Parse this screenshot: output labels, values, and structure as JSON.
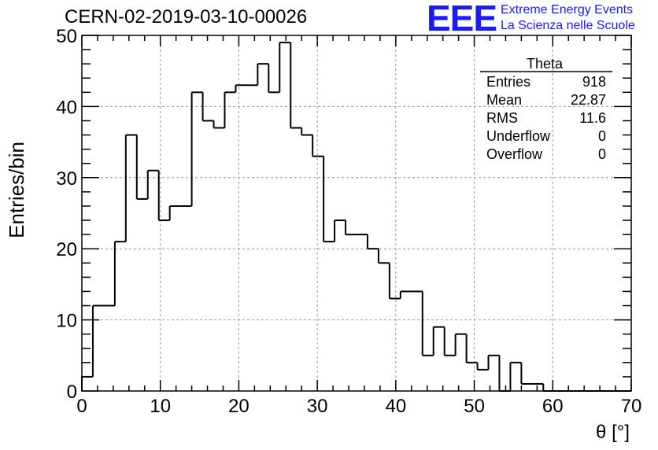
{
  "header": {
    "run_title": "CERN-02-2019-03-10-00026",
    "logo_text": "EEE",
    "logo_line1": "Extreme Energy Events",
    "logo_line2": "La Scienza nelle Scuole",
    "logo_color": "#1a1aff"
  },
  "stats_box": {
    "title": "Theta",
    "rows": [
      {
        "label": "Entries",
        "value": "918"
      },
      {
        "label": "Mean",
        "value": "22.87"
      },
      {
        "label": "RMS",
        "value": "11.6"
      },
      {
        "label": "Underflow",
        "value": "0"
      },
      {
        "label": "Overflow",
        "value": "0"
      }
    ]
  },
  "chart_data": {
    "type": "bar",
    "histogram": true,
    "title": "CERN-02-2019-03-10-00026",
    "xlabel": "θ [°]",
    "ylabel": "Entries/bin",
    "xlim": [
      0,
      70
    ],
    "ylim": [
      0,
      50
    ],
    "bin_width": 1.4,
    "x_ticks": [
      0,
      10,
      20,
      30,
      40,
      50,
      60,
      70
    ],
    "y_ticks": [
      0,
      10,
      20,
      30,
      40,
      50
    ],
    "grid": true,
    "values": [
      2,
      12,
      12,
      21,
      36,
      27,
      31,
      24,
      26,
      26,
      42,
      38,
      37,
      42,
      43,
      43,
      46,
      42,
      49,
      37,
      36,
      33,
      21,
      24,
      22,
      22,
      20,
      18,
      13,
      14,
      14,
      5,
      9,
      5,
      8,
      4,
      3,
      5,
      0,
      4,
      1,
      1,
      0,
      0,
      0,
      0,
      0,
      0,
      0,
      0
    ],
    "line_color": "#000000"
  }
}
